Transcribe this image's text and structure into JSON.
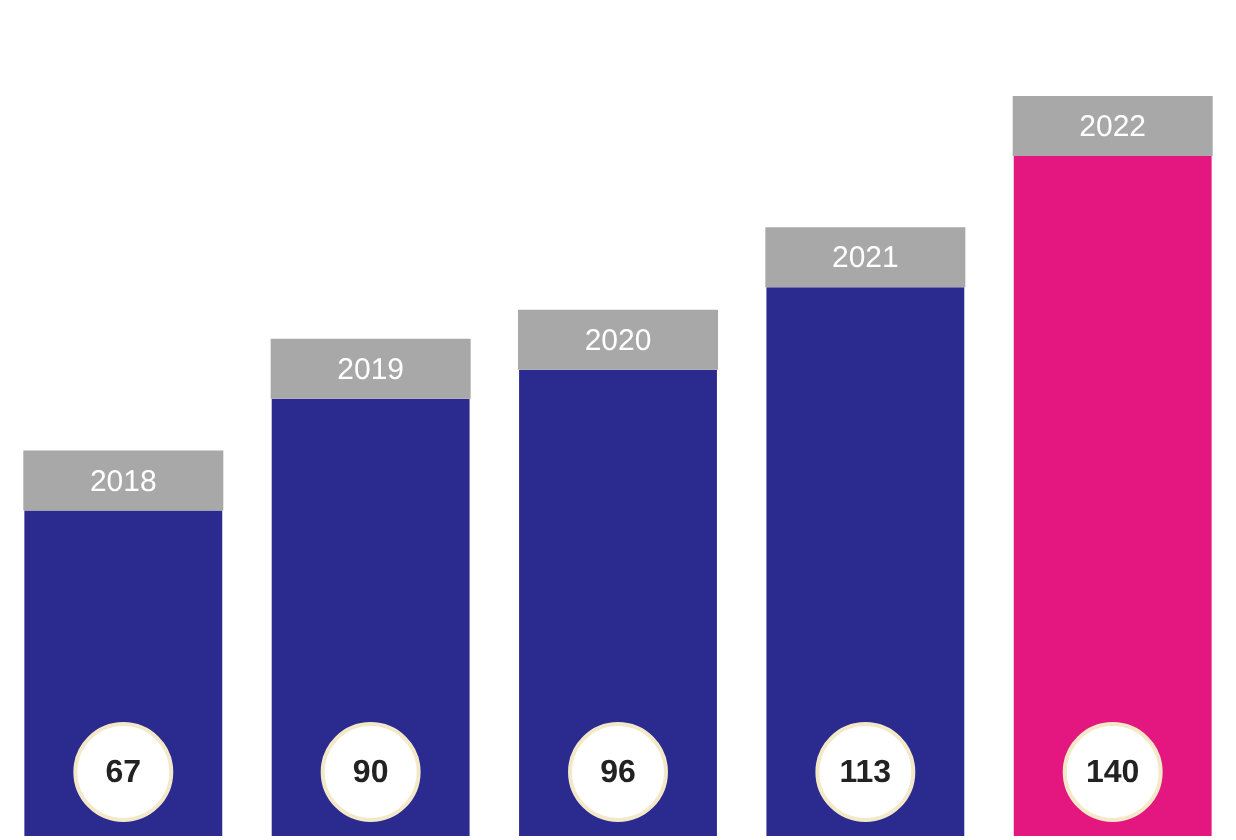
{
  "chart_data": {
    "type": "bar",
    "categories": [
      "2018",
      "2019",
      "2020",
      "2021",
      "2022"
    ],
    "values": [
      67,
      90,
      96,
      113,
      140
    ],
    "colors": [
      "#2b2b8f",
      "#2b2b8f",
      "#2b2b8f",
      "#2b2b8f",
      "#e3177f"
    ],
    "data_labels": true
  }
}
